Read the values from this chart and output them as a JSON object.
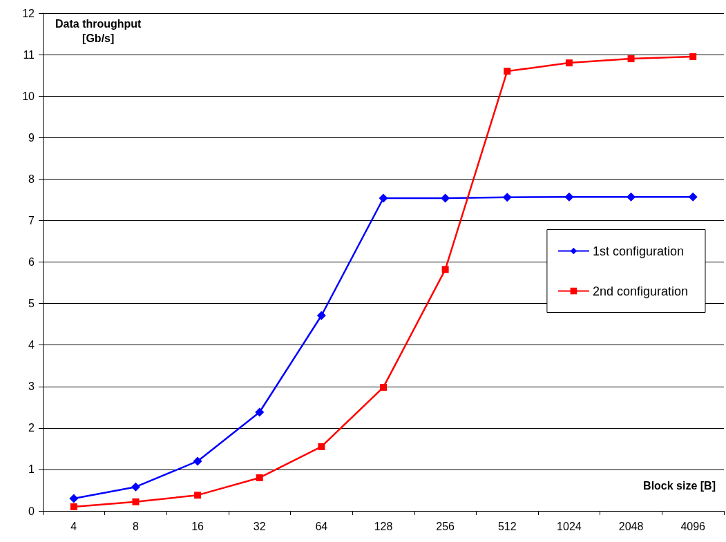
{
  "chart_data": {
    "type": "line",
    "xlabel": "Block size [B]",
    "ylabel": "Data throughput\n[Gb/s]",
    "categories": [
      "4",
      "8",
      "16",
      "32",
      "64",
      "128",
      "256",
      "512",
      "1024",
      "2048",
      "4096"
    ],
    "series": [
      {
        "name": "1st configuration",
        "color": "#0000ff",
        "marker": "diamond",
        "values": [
          0.3,
          0.58,
          1.2,
          2.38,
          4.71,
          7.54,
          7.54,
          7.56,
          7.57,
          7.57,
          7.57
        ]
      },
      {
        "name": "2nd configuration",
        "color": "#ff0000",
        "marker": "square",
        "values": [
          0.1,
          0.22,
          0.38,
          0.8,
          1.55,
          2.98,
          5.82,
          10.6,
          10.8,
          10.9,
          10.95
        ]
      }
    ],
    "ylim": [
      0,
      12
    ],
    "yticks": [
      0,
      1,
      2,
      3,
      4,
      5,
      6,
      7,
      8,
      9,
      10,
      11,
      12
    ],
    "grid": "y",
    "legend": "right",
    "line_style": "solid"
  }
}
